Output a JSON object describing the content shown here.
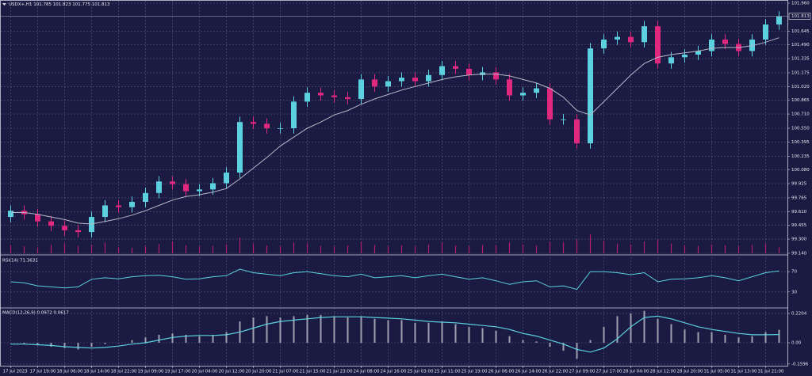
{
  "chart_data": [
    {
      "type": "candlestick",
      "title": "USDX+,H1  101.785 101.823 101.775 101.813",
      "categories": [
        "17 Jul 2023",
        null,
        "17 Jul 19:00",
        null,
        "18 Jul 06:00",
        null,
        "18 Jul 14:00",
        null,
        "18 Jul 22:00",
        null,
        "19 Jul 09:00",
        null,
        "19 Jul 17:00",
        null,
        "20 Jul 04:00",
        null,
        "20 Jul 12:00",
        null,
        "20 Jul 20:00",
        null,
        "21 Jul 07:00",
        null,
        "21 Jul 15:00",
        null,
        "21 Jul 23:00",
        null,
        "24 Jul 08:00",
        null,
        "24 Jul 16:00",
        null,
        "25 Jul 03:00",
        null,
        "25 Jul 11:00",
        null,
        "25 Jul 19:00",
        null,
        "26 Jul 06:00",
        null,
        "26 Jul 14:00",
        null,
        "26 Jul 22:00",
        null,
        "27 Jul 09:00",
        null,
        "27 Jul 17:00",
        null,
        "28 Jul 04:00",
        null,
        "28 Jul 12:00",
        null,
        "28 Jul 20:00",
        null,
        "31 Jul 05:00",
        null,
        "31 Jul 13:00",
        null,
        "31 Jul 21:00",
        null
      ],
      "open": [
        99.55,
        99.62,
        99.58,
        99.5,
        99.45,
        99.4,
        99.38,
        99.55,
        99.68,
        99.66,
        99.72,
        99.82,
        99.95,
        99.92,
        99.84,
        99.86,
        99.93,
        100.05,
        100.62,
        100.6,
        100.55,
        100.55,
        100.85,
        100.95,
        100.92,
        100.9,
        100.88,
        101.1,
        101.02,
        101.08,
        101.12,
        101.08,
        101.15,
        101.25,
        101.22,
        101.15,
        101.18,
        101.1,
        100.92,
        100.95,
        101.0,
        100.65,
        100.65,
        100.38,
        101.45,
        101.55,
        101.58,
        101.52,
        101.7,
        101.28,
        101.35,
        101.38,
        101.42,
        101.55,
        101.5,
        101.42,
        101.55,
        101.72
      ],
      "high": [
        99.68,
        99.68,
        99.64,
        99.56,
        99.51,
        99.46,
        99.61,
        99.74,
        99.74,
        99.78,
        99.88,
        100.01,
        100.01,
        99.98,
        99.92,
        99.99,
        100.11,
        100.68,
        100.68,
        100.66,
        100.61,
        100.91,
        101.01,
        101.01,
        100.98,
        100.96,
        101.16,
        101.16,
        101.14,
        101.18,
        101.18,
        101.21,
        101.31,
        101.31,
        101.28,
        101.24,
        101.24,
        101.16,
        101.01,
        101.06,
        101.06,
        100.71,
        100.71,
        101.51,
        101.61,
        101.64,
        101.64,
        101.76,
        101.76,
        101.41,
        101.44,
        101.48,
        101.61,
        101.61,
        101.56,
        101.61,
        101.78,
        101.87
      ],
      "low": [
        99.49,
        99.52,
        99.44,
        99.39,
        99.34,
        99.32,
        99.32,
        99.49,
        99.6,
        99.6,
        99.66,
        99.76,
        99.86,
        99.78,
        99.78,
        99.8,
        99.87,
        99.99,
        100.54,
        100.49,
        100.49,
        100.49,
        100.79,
        100.86,
        100.84,
        100.82,
        100.82,
        100.96,
        100.96,
        101.02,
        101.02,
        101.02,
        101.09,
        101.16,
        101.09,
        101.09,
        101.04,
        100.86,
        100.86,
        100.89,
        100.59,
        100.59,
        100.32,
        100.32,
        101.39,
        101.49,
        101.46,
        101.46,
        101.22,
        101.22,
        101.29,
        101.32,
        101.36,
        101.44,
        101.36,
        101.36,
        101.49,
        101.66
      ],
      "close": [
        99.62,
        99.58,
        99.5,
        99.45,
        99.4,
        99.38,
        99.55,
        99.68,
        99.66,
        99.72,
        99.82,
        99.95,
        99.92,
        99.84,
        99.86,
        99.93,
        100.05,
        100.62,
        100.6,
        100.55,
        100.55,
        100.85,
        100.95,
        100.92,
        100.9,
        100.88,
        101.1,
        101.02,
        101.08,
        101.12,
        101.08,
        101.15,
        101.25,
        101.22,
        101.15,
        101.18,
        101.1,
        100.92,
        100.95,
        101.0,
        100.65,
        100.65,
        100.38,
        101.45,
        101.55,
        101.58,
        101.52,
        101.7,
        101.28,
        101.35,
        101.38,
        101.42,
        101.55,
        101.5,
        101.42,
        101.55,
        101.72,
        101.81
      ],
      "up_color": "#5cd0de",
      "down_color": "#e0287e",
      "ma": {
        "color": "#b8b8c8",
        "values": [
          99.6,
          99.6,
          99.58,
          99.55,
          99.52,
          99.48,
          99.47,
          99.5,
          99.53,
          99.57,
          99.62,
          99.68,
          99.74,
          99.78,
          99.8,
          99.83,
          99.87,
          99.98,
          100.1,
          100.22,
          100.35,
          100.45,
          100.55,
          100.62,
          100.7,
          100.75,
          100.82,
          100.88,
          100.93,
          100.98,
          101.02,
          101.06,
          101.1,
          101.13,
          101.15,
          101.16,
          101.16,
          101.14,
          101.1,
          101.06,
          101.0,
          100.9,
          100.75,
          100.7,
          100.85,
          101.0,
          101.15,
          101.28,
          101.35,
          101.38,
          101.4,
          101.42,
          101.45,
          101.46,
          101.46,
          101.48,
          101.52,
          101.57
        ]
      },
      "volume": {
        "color": "#b0206a",
        "max": 100,
        "values": [
          40,
          35,
          30,
          45,
          50,
          38,
          42,
          55,
          30,
          28,
          35,
          48,
          60,
          40,
          35,
          38,
          45,
          80,
          50,
          40,
          35,
          55,
          50,
          38,
          35,
          40,
          60,
          42,
          38,
          40,
          35,
          45,
          55,
          40,
          38,
          42,
          40,
          55,
          45,
          40,
          60,
          55,
          70,
          95,
          65,
          50,
          45,
          60,
          70,
          50,
          40,
          38,
          45,
          40,
          38,
          42,
          50,
          30
        ]
      },
      "last_price": 101.813,
      "ylim": [
        99.14,
        101.96
      ],
      "yticks": [
        {
          "value": 101.96,
          "label": "101.960"
        },
        {
          "value": 101.645,
          "label": "101.645"
        },
        {
          "value": 101.49,
          "label": "101.490"
        },
        {
          "value": 101.335,
          "label": "101.335"
        },
        {
          "value": 101.175,
          "label": "101.175"
        },
        {
          "value": 101.02,
          "label": "101.020"
        },
        {
          "value": 100.865,
          "label": "100.865"
        },
        {
          "value": 100.71,
          "label": "100.710"
        },
        {
          "value": 100.55,
          "label": "100.550"
        },
        {
          "value": 100.395,
          "label": "100.395"
        },
        {
          "value": 100.235,
          "label": "100.235"
        },
        {
          "value": 100.08,
          "label": "100.080"
        },
        {
          "value": 99.925,
          "label": "99.925"
        },
        {
          "value": 99.765,
          "label": "99.765"
        },
        {
          "value": 99.61,
          "label": "99.610"
        },
        {
          "value": 99.455,
          "label": "99.455"
        },
        {
          "value": 99.3,
          "label": "99.300"
        },
        {
          "value": 99.14,
          "label": "99.140"
        }
      ],
      "grid": true
    },
    {
      "type": "line",
      "title": "RSI(14) 71.3631",
      "color": "#5cd0de",
      "values": [
        50,
        48,
        42,
        40,
        38,
        40,
        55,
        58,
        56,
        60,
        62,
        63,
        60,
        55,
        56,
        60,
        62,
        75,
        68,
        65,
        62,
        68,
        70,
        66,
        62,
        60,
        65,
        58,
        60,
        62,
        58,
        62,
        65,
        60,
        55,
        58,
        52,
        45,
        50,
        52,
        40,
        42,
        35,
        70,
        70,
        68,
        64,
        68,
        50,
        55,
        56,
        58,
        62,
        58,
        52,
        60,
        68,
        71.3631
      ],
      "ylim": [
        0,
        100
      ],
      "yticks": [
        70,
        30
      ],
      "grid": true
    },
    {
      "type": "bar",
      "title": "MACD(12,26,9) 0.0972 0.0617",
      "color": "#a0a0b0",
      "values": [
        0.0,
        -0.01,
        -0.02,
        -0.03,
        -0.04,
        -0.05,
        -0.03,
        -0.01,
        0.0,
        0.02,
        0.04,
        0.06,
        0.07,
        0.06,
        0.05,
        0.06,
        0.08,
        0.16,
        0.19,
        0.2,
        0.19,
        0.2,
        0.21,
        0.21,
        0.2,
        0.19,
        0.2,
        0.18,
        0.17,
        0.17,
        0.15,
        0.15,
        0.16,
        0.14,
        0.12,
        0.11,
        0.09,
        0.05,
        0.02,
        0.01,
        -0.03,
        -0.06,
        -0.12,
        0.02,
        0.12,
        0.2,
        0.22,
        0.24,
        0.18,
        0.14,
        0.1,
        0.08,
        0.08,
        0.06,
        0.04,
        0.05,
        0.08,
        0.0972
      ],
      "signal": {
        "color": "#5cd0de",
        "values": [
          -0.01,
          -0.01,
          -0.015,
          -0.02,
          -0.03,
          -0.035,
          -0.04,
          -0.035,
          -0.025,
          -0.01,
          0.0,
          0.02,
          0.04,
          0.05,
          0.055,
          0.055,
          0.06,
          0.08,
          0.11,
          0.14,
          0.16,
          0.17,
          0.18,
          0.19,
          0.195,
          0.195,
          0.195,
          0.19,
          0.185,
          0.18,
          0.17,
          0.16,
          0.155,
          0.15,
          0.14,
          0.13,
          0.12,
          0.1,
          0.07,
          0.05,
          0.02,
          -0.01,
          -0.05,
          -0.07,
          -0.04,
          0.03,
          0.12,
          0.19,
          0.2,
          0.18,
          0.15,
          0.12,
          0.1,
          0.085,
          0.07,
          0.06,
          0.06,
          0.0617
        ]
      },
      "ylim": [
        -0.1726,
        0.256
      ],
      "yticks": [
        0.2204,
        {
          "value": 0,
          "label": "0.00"
        },
        -0.1596
      ],
      "grid": true
    }
  ]
}
